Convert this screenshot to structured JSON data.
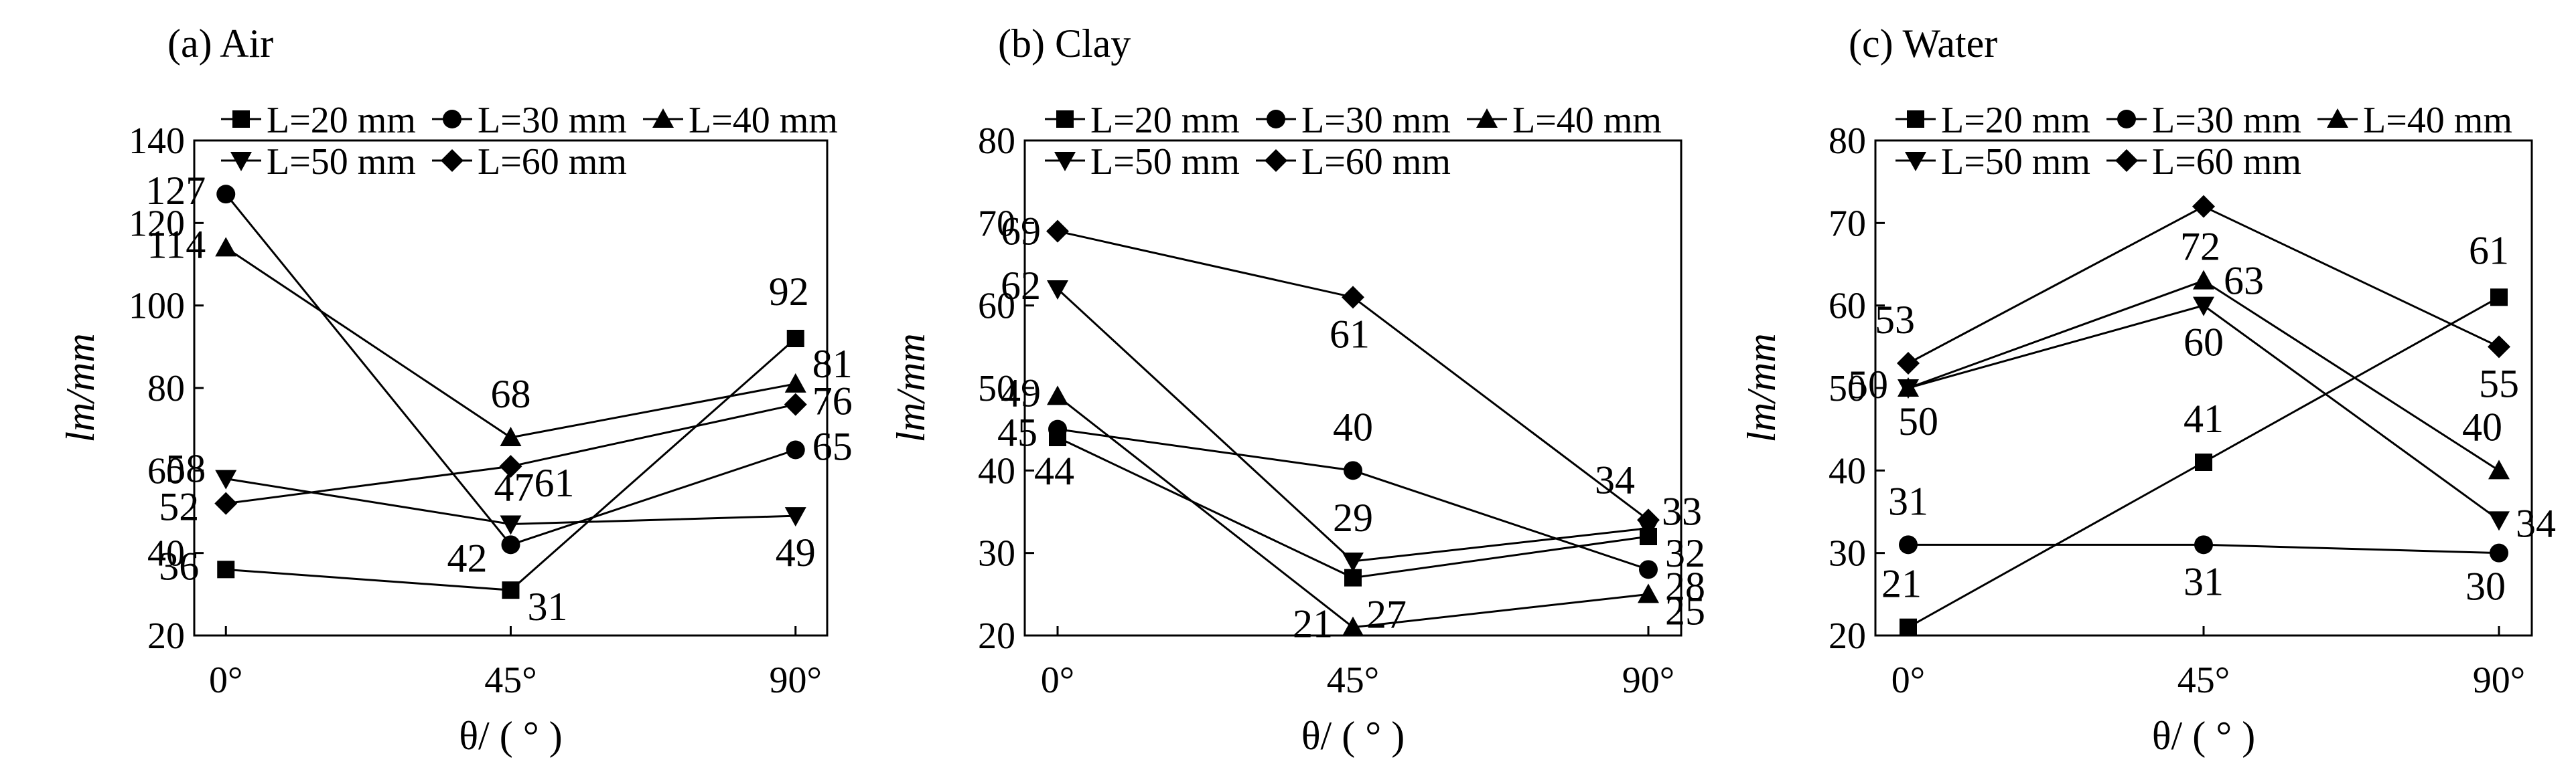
{
  "chart_data": [
    {
      "type": "line",
      "title": "(a) Air",
      "xlabel": "θ/ (  ° )",
      "ylabel": "lm/mm",
      "categories": [
        "0°",
        "45°",
        "90°"
      ],
      "ylim": [
        20,
        140
      ],
      "yticks": [
        "20",
        "40",
        "60",
        "80",
        "100",
        "120",
        "140"
      ],
      "series": [
        {
          "name": "L=20 mm",
          "marker": "square",
          "values": [
            36,
            31,
            92
          ],
          "labels": [
            "36",
            "31",
            "92"
          ]
        },
        {
          "name": "L=30 mm",
          "marker": "circle",
          "values": [
            127,
            42,
            65
          ],
          "labels": [
            "127",
            "42",
            "65"
          ]
        },
        {
          "name": "L=40 mm",
          "marker": "triangle-up",
          "values": [
            114,
            68,
            81
          ],
          "labels": [
            "114",
            "68",
            "81"
          ]
        },
        {
          "name": "L=50 mm",
          "marker": "triangle-down",
          "values": [
            58,
            47,
            49
          ],
          "labels": [
            "58",
            "47",
            "49"
          ]
        },
        {
          "name": "L=60 mm",
          "marker": "diamond",
          "values": [
            52,
            61,
            76
          ],
          "labels": [
            "52",
            "61",
            "76"
          ]
        }
      ]
    },
    {
      "type": "line",
      "title": "(b) Clay",
      "xlabel": "θ/ (  ° )",
      "ylabel": "lm/mm",
      "categories": [
        "0°",
        "45°",
        "90°"
      ],
      "ylim": [
        20,
        80
      ],
      "yticks": [
        "20",
        "30",
        "40",
        "50",
        "60",
        "70",
        "80"
      ],
      "series": [
        {
          "name": "L=20 mm",
          "marker": "square",
          "values": [
            44,
            27,
            32
          ],
          "labels": [
            "44",
            "27",
            "32"
          ]
        },
        {
          "name": "L=30 mm",
          "marker": "circle",
          "values": [
            45,
            40,
            28
          ],
          "labels": [
            "45",
            "40",
            "28"
          ]
        },
        {
          "name": "L=40 mm",
          "marker": "triangle-up",
          "values": [
            49,
            21,
            25
          ],
          "labels": [
            "49",
            "21",
            "25"
          ]
        },
        {
          "name": "L=50 mm",
          "marker": "triangle-down",
          "values": [
            62,
            29,
            33
          ],
          "labels": [
            "62",
            "29",
            "33"
          ]
        },
        {
          "name": "L=60 mm",
          "marker": "diamond",
          "values": [
            69,
            61,
            34
          ],
          "labels": [
            "69",
            "61",
            "34"
          ]
        }
      ]
    },
    {
      "type": "line",
      "title": "(c) Water",
      "xlabel": "θ/ (  ° )",
      "ylabel": "lm/mm",
      "categories": [
        "0°",
        "45°",
        "90°"
      ],
      "ylim": [
        20,
        80
      ],
      "yticks": [
        "20",
        "30",
        "40",
        "50",
        "60",
        "70",
        "80"
      ],
      "series": [
        {
          "name": "L=20 mm",
          "marker": "square",
          "values": [
            21,
            41,
            61
          ],
          "labels": [
            "21",
            "41",
            "61"
          ]
        },
        {
          "name": "L=30 mm",
          "marker": "circle",
          "values": [
            31,
            31,
            30
          ],
          "labels": [
            "31",
            "31",
            "30"
          ]
        },
        {
          "name": "L=40 mm",
          "marker": "triangle-up",
          "values": [
            50,
            63,
            40
          ],
          "labels": [
            "",
            "63",
            "40"
          ]
        },
        {
          "name": "L=50 mm",
          "marker": "triangle-down",
          "values": [
            50,
            60,
            34
          ],
          "labels": [
            "50",
            "60",
            "34"
          ]
        },
        {
          "name": "L=60 mm",
          "marker": "diamond",
          "values": [
            53,
            72,
            55
          ],
          "labels": [
            "53",
            "72",
            "55"
          ]
        }
      ]
    }
  ]
}
